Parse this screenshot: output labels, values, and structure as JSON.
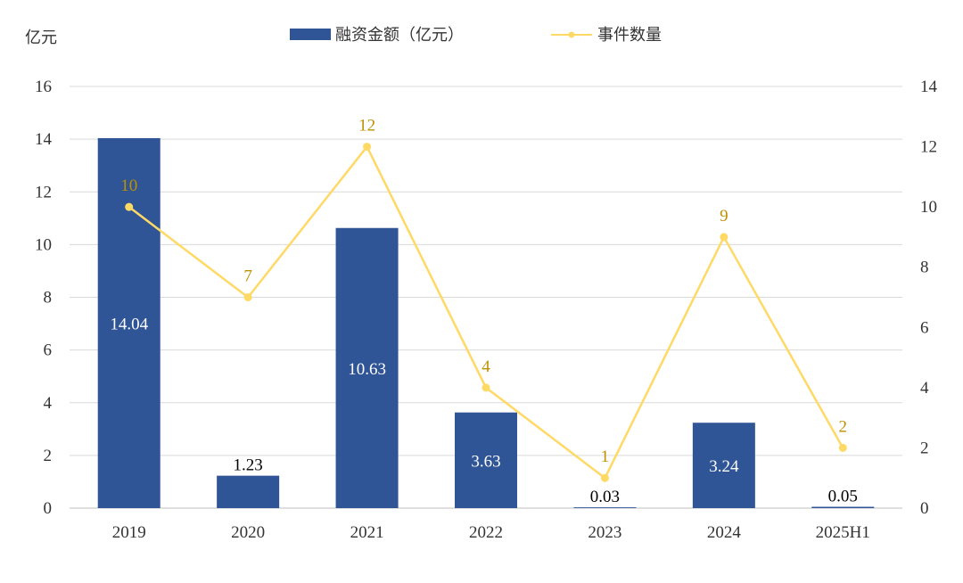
{
  "chart_data": {
    "type": "bar",
    "categories": [
      "2019",
      "2020",
      "2021",
      "2022",
      "2023",
      "2024",
      "2025H1"
    ],
    "left_axis_label": "亿元",
    "ylim_left": [
      0,
      16
    ],
    "yticks_left": [
      0,
      2,
      4,
      6,
      8,
      10,
      12,
      14,
      16
    ],
    "ylim_right": [
      0,
      14
    ],
    "yticks_right": [
      0,
      2,
      4,
      6,
      8,
      10,
      12,
      14
    ],
    "grid": true,
    "legend_position": "top-center",
    "series": [
      {
        "name": "融资金额（亿元）",
        "type": "bar",
        "axis": "left",
        "color": "#2f5597",
        "values": [
          14.04,
          1.23,
          10.63,
          3.63,
          0.03,
          3.24,
          0.05
        ],
        "labels": [
          "14.04",
          "1.23",
          "10.63",
          "3.63",
          "0.03",
          "3.24",
          "0.05"
        ]
      },
      {
        "name": "事件数量",
        "type": "line",
        "axis": "right",
        "color": "#ffd966",
        "label_color": "#bf9000",
        "values": [
          10,
          7,
          12,
          4,
          1,
          9,
          2
        ],
        "labels": [
          "10",
          "7",
          "12",
          "4",
          "1",
          "9",
          "2"
        ]
      }
    ]
  }
}
